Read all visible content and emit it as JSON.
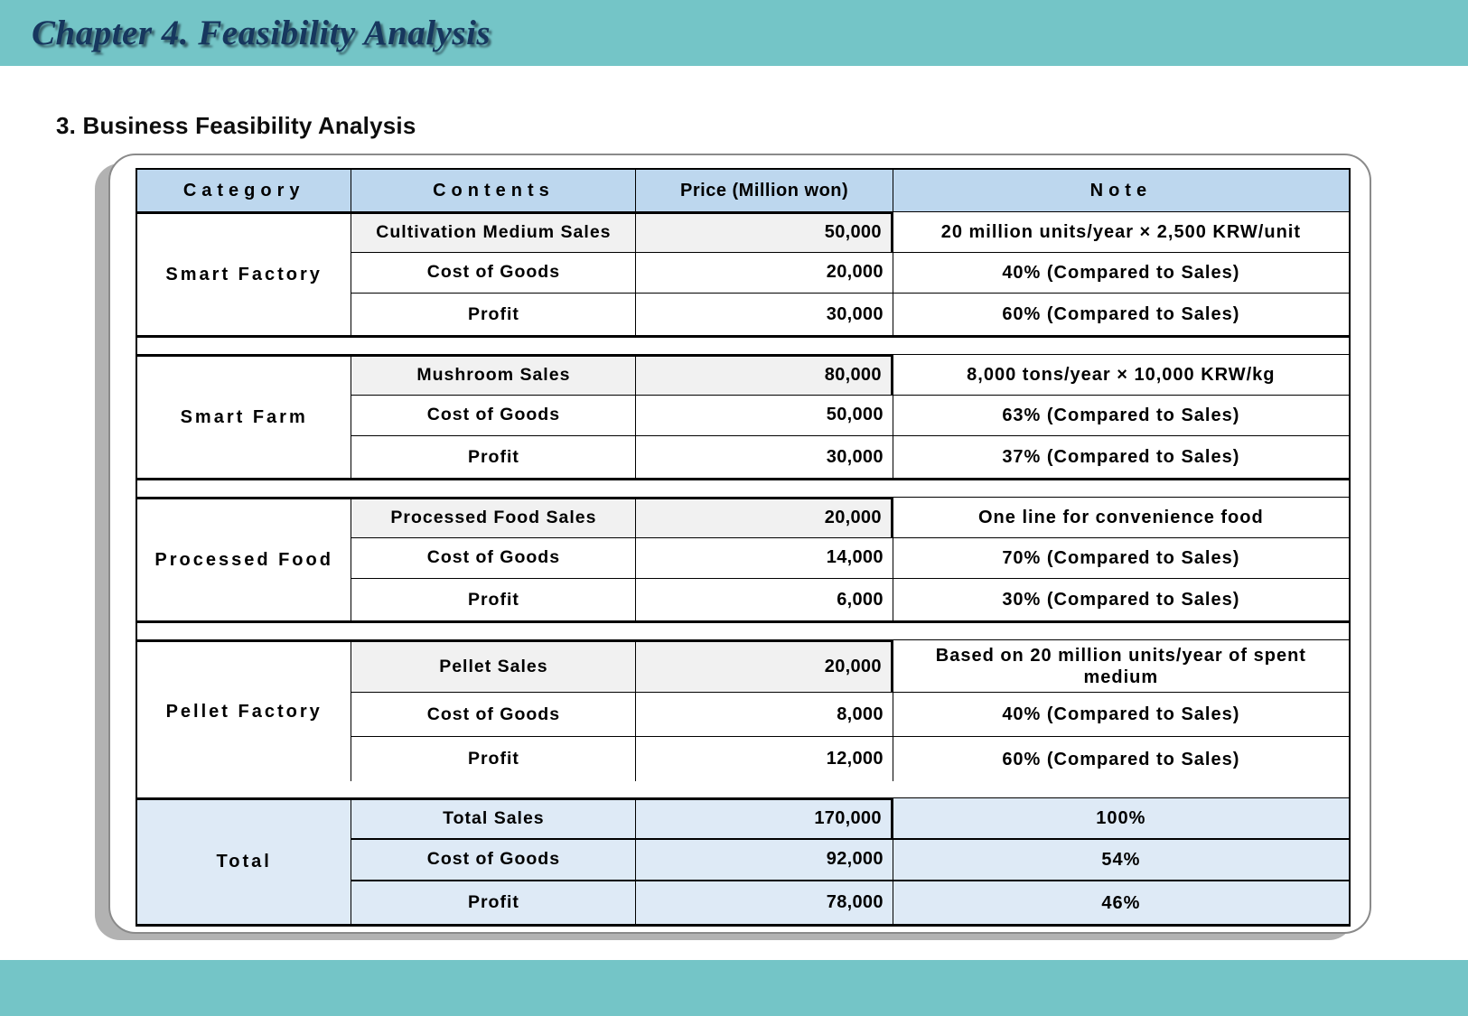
{
  "page": {
    "chapter_title": "Chapter 4. Feasibility Analysis",
    "section_heading": "3. Business Feasibility Analysis"
  },
  "colors": {
    "band_teal": "#74C5C7",
    "header_blue": "#BDD7EE",
    "total_blue": "#DEEAF6",
    "sales_row_gray": "#F1F1F1",
    "title_navy": "#17375E"
  },
  "table": {
    "headers": [
      "Category",
      "Contents",
      "Price (Million won)",
      "Note"
    ],
    "groups": [
      {
        "id": "smart-factory",
        "category": "Smart Factory",
        "rows": [
          {
            "contents": "Cultivation Medium Sales",
            "price": "50,000",
            "note": "20 million units/year × 2,500 KRW/unit"
          },
          {
            "contents": "Cost of Goods",
            "price": "20,000",
            "note": "40% (Compared to Sales)"
          },
          {
            "contents": "Profit",
            "price": "30,000",
            "note": "60% (Compared to Sales)"
          }
        ]
      },
      {
        "id": "smart-farm",
        "category": "Smart Farm",
        "rows": [
          {
            "contents": "Mushroom Sales",
            "price": "80,000",
            "note": "8,000 tons/year × 10,000 KRW/kg"
          },
          {
            "contents": "Cost of Goods",
            "price": "50,000",
            "note": "63% (Compared to Sales)"
          },
          {
            "contents": "Profit",
            "price": "30,000",
            "note": "37% (Compared to Sales)"
          }
        ]
      },
      {
        "id": "processed-food",
        "category": "Processed Food",
        "rows": [
          {
            "contents": "Processed Food Sales",
            "price": "20,000",
            "note": "One line for convenience food"
          },
          {
            "contents": "Cost of Goods",
            "price": "14,000",
            "note": "70% (Compared to Sales)"
          },
          {
            "contents": "Profit",
            "price": "6,000",
            "note": "30% (Compared to Sales)"
          }
        ]
      },
      {
        "id": "pellet-factory",
        "category": "Pellet Factory",
        "tall_first_row": true,
        "rows": [
          {
            "contents": "Pellet Sales",
            "price": "20,000",
            "note": "Based on 20 million units/year of spent medium"
          },
          {
            "contents": "Cost of Goods",
            "price": "8,000",
            "note": "40% (Compared to Sales)"
          },
          {
            "contents": "Profit",
            "price": "12,000",
            "note": "60% (Compared to Sales)"
          }
        ]
      },
      {
        "id": "total",
        "category": "Total",
        "variant": "total",
        "rows": [
          {
            "contents": "Total Sales",
            "price": "170,000",
            "note": "100%"
          },
          {
            "contents": "Cost of Goods",
            "price": "92,000",
            "note": "54%"
          },
          {
            "contents": "Profit",
            "price": "78,000",
            "note": "46%"
          }
        ]
      }
    ]
  }
}
